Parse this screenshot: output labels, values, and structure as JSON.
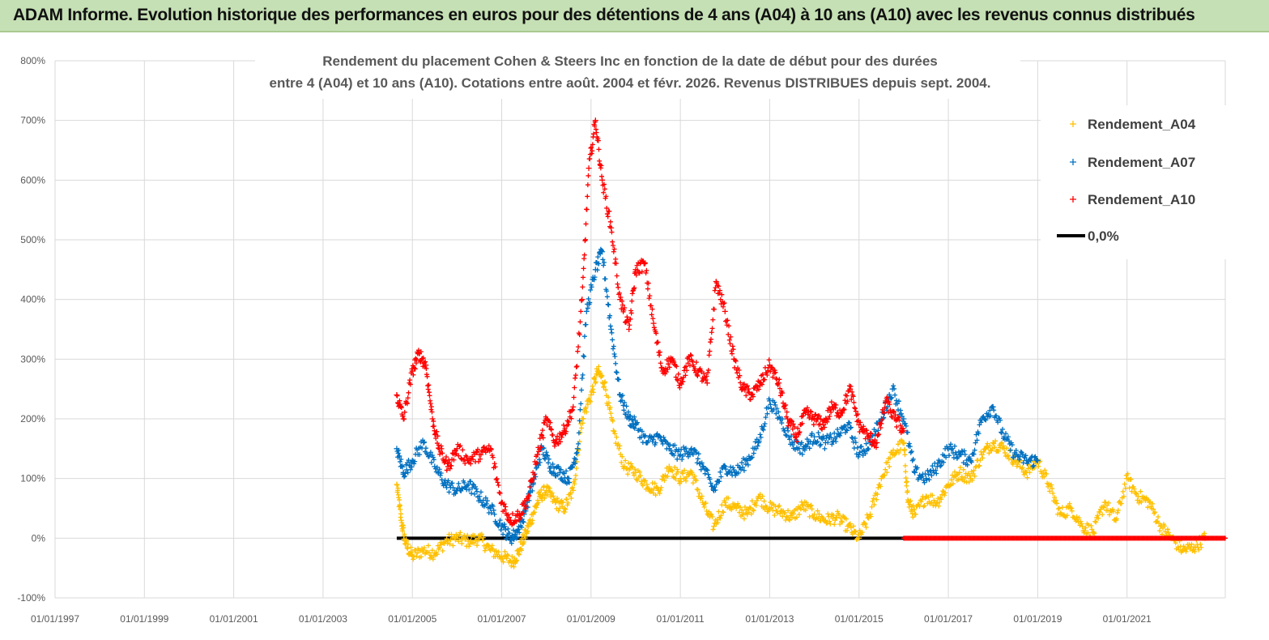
{
  "header": {
    "title": "ADAM Informe. Evolution historique des performances en euros pour des détentions de 4 ans (A04) à 10 ans (A10) avec les revenus connus distribués"
  },
  "chart_data": {
    "type": "scatter",
    "title_lines": [
      "Rendement du placement Cohen & Steers Inc en fonction de la date de début pour des durées",
      "entre 4 (A04) et 10 ans (A10).  Cotations entre août. 2004 et févr. 2026. Revenus DISTRIBUES depuis sept. 2004."
    ],
    "y_ticks": [
      "-100%",
      "0%",
      "100%",
      "200%",
      "300%",
      "400%",
      "500%",
      "600%",
      "700%",
      "800%"
    ],
    "x_ticks": [
      "01/01/1997",
      "01/01/1999",
      "01/01/2001",
      "01/01/2003",
      "01/01/2005",
      "01/01/2007",
      "01/01/2009",
      "01/01/2011",
      "01/01/2013",
      "01/01/2015",
      "01/01/2017",
      "01/01/2019",
      "01/01/2021"
    ],
    "xlim": [
      1997.0,
      2023.2
    ],
    "ylim": [
      -100,
      800
    ],
    "grid": true,
    "legend_position": "top-right",
    "series": [
      {
        "name": "Rendement_A04",
        "color": "#ffc000",
        "marker": "+",
        "points": [
          [
            2004.65,
            90
          ],
          [
            2004.75,
            30
          ],
          [
            2004.85,
            -10
          ],
          [
            2005.0,
            -30
          ],
          [
            2005.25,
            -20
          ],
          [
            2005.5,
            -25
          ],
          [
            2005.75,
            -5
          ],
          [
            2006.0,
            0
          ],
          [
            2006.25,
            -5
          ],
          [
            2006.5,
            0
          ],
          [
            2006.75,
            -20
          ],
          [
            2007.0,
            -30
          ],
          [
            2007.25,
            -40
          ],
          [
            2007.4,
            -20
          ],
          [
            2007.55,
            10
          ],
          [
            2007.7,
            40
          ],
          [
            2007.85,
            70
          ],
          [
            2008.0,
            80
          ],
          [
            2008.2,
            60
          ],
          [
            2008.4,
            50
          ],
          [
            2008.6,
            80
          ],
          [
            2008.8,
            200
          ],
          [
            2009.0,
            240
          ],
          [
            2009.15,
            280
          ],
          [
            2009.3,
            260
          ],
          [
            2009.5,
            180
          ],
          [
            2009.75,
            120
          ],
          [
            2010.0,
            110
          ],
          [
            2010.25,
            90
          ],
          [
            2010.5,
            80
          ],
          [
            2010.75,
            120
          ],
          [
            2011.0,
            100
          ],
          [
            2011.25,
            110
          ],
          [
            2011.5,
            60
          ],
          [
            2011.75,
            20
          ],
          [
            2012.0,
            60
          ],
          [
            2012.25,
            50
          ],
          [
            2012.5,
            40
          ],
          [
            2012.75,
            70
          ],
          [
            2013.0,
            50
          ],
          [
            2013.25,
            45
          ],
          [
            2013.5,
            35
          ],
          [
            2013.75,
            55
          ],
          [
            2014.0,
            40
          ],
          [
            2014.25,
            30
          ],
          [
            2014.5,
            35
          ],
          [
            2014.75,
            20
          ],
          [
            2015.0,
            0
          ],
          [
            2015.25,
            40
          ],
          [
            2015.5,
            100
          ],
          [
            2015.75,
            140
          ],
          [
            2016.0,
            160
          ],
          [
            2016.1,
            60
          ],
          [
            2016.25,
            40
          ],
          [
            2016.5,
            70
          ],
          [
            2016.75,
            60
          ],
          [
            2017.0,
            90
          ],
          [
            2017.25,
            110
          ],
          [
            2017.5,
            100
          ],
          [
            2017.75,
            140
          ],
          [
            2018.0,
            160
          ],
          [
            2018.25,
            150
          ],
          [
            2018.5,
            130
          ],
          [
            2018.75,
            110
          ],
          [
            2019.0,
            130
          ],
          [
            2019.25,
            90
          ],
          [
            2019.5,
            40
          ],
          [
            2019.75,
            50
          ],
          [
            2020.0,
            20
          ],
          [
            2020.25,
            10
          ],
          [
            2020.5,
            60
          ],
          [
            2020.75,
            30
          ],
          [
            2021.0,
            100
          ],
          [
            2021.25,
            70
          ],
          [
            2021.5,
            60
          ],
          [
            2021.75,
            20
          ],
          [
            2022.0,
            0
          ],
          [
            2022.25,
            -20
          ],
          [
            2022.5,
            -15
          ],
          [
            2022.75,
            0
          ]
        ]
      },
      {
        "name": "Rendement_A07",
        "color": "#0070c0",
        "marker": "+",
        "points": [
          [
            2004.65,
            150
          ],
          [
            2004.8,
            110
          ],
          [
            2005.0,
            130
          ],
          [
            2005.25,
            160
          ],
          [
            2005.5,
            120
          ],
          [
            2005.75,
            90
          ],
          [
            2006.0,
            80
          ],
          [
            2006.25,
            90
          ],
          [
            2006.5,
            70
          ],
          [
            2006.75,
            50
          ],
          [
            2007.0,
            20
          ],
          [
            2007.2,
            0
          ],
          [
            2007.35,
            10
          ],
          [
            2007.5,
            40
          ],
          [
            2007.7,
            90
          ],
          [
            2007.9,
            150
          ],
          [
            2008.1,
            120
          ],
          [
            2008.3,
            110
          ],
          [
            2008.5,
            100
          ],
          [
            2008.7,
            150
          ],
          [
            2008.9,
            380
          ],
          [
            2009.1,
            450
          ],
          [
            2009.25,
            480
          ],
          [
            2009.45,
            350
          ],
          [
            2009.65,
            240
          ],
          [
            2009.85,
            200
          ],
          [
            2010.0,
            190
          ],
          [
            2010.25,
            160
          ],
          [
            2010.5,
            170
          ],
          [
            2010.75,
            150
          ],
          [
            2011.0,
            140
          ],
          [
            2011.25,
            150
          ],
          [
            2011.5,
            120
          ],
          [
            2011.75,
            80
          ],
          [
            2012.0,
            120
          ],
          [
            2012.25,
            110
          ],
          [
            2012.5,
            130
          ],
          [
            2012.75,
            160
          ],
          [
            2013.0,
            230
          ],
          [
            2013.25,
            200
          ],
          [
            2013.5,
            160
          ],
          [
            2013.75,
            150
          ],
          [
            2014.0,
            170
          ],
          [
            2014.25,
            160
          ],
          [
            2014.5,
            170
          ],
          [
            2014.75,
            190
          ],
          [
            2015.0,
            140
          ],
          [
            2015.25,
            160
          ],
          [
            2015.5,
            200
          ],
          [
            2015.75,
            250
          ],
          [
            2016.0,
            200
          ],
          [
            2016.25,
            110
          ],
          [
            2016.5,
            100
          ],
          [
            2016.75,
            120
          ],
          [
            2017.0,
            150
          ],
          [
            2017.25,
            140
          ],
          [
            2017.5,
            130
          ],
          [
            2017.75,
            200
          ],
          [
            2018.0,
            220
          ],
          [
            2018.25,
            170
          ],
          [
            2018.5,
            140
          ],
          [
            2018.75,
            130
          ],
          [
            2019.0,
            130
          ]
        ]
      },
      {
        "name": "Rendement_A10",
        "color": "#ff0000",
        "marker": "+",
        "points": [
          [
            2004.65,
            240
          ],
          [
            2004.8,
            200
          ],
          [
            2005.0,
            280
          ],
          [
            2005.15,
            310
          ],
          [
            2005.3,
            290
          ],
          [
            2005.45,
            200
          ],
          [
            2005.6,
            150
          ],
          [
            2005.8,
            120
          ],
          [
            2006.0,
            150
          ],
          [
            2006.25,
            130
          ],
          [
            2006.5,
            140
          ],
          [
            2006.75,
            150
          ],
          [
            2007.0,
            60
          ],
          [
            2007.2,
            30
          ],
          [
            2007.4,
            40
          ],
          [
            2007.6,
            70
          ],
          [
            2007.8,
            140
          ],
          [
            2008.0,
            200
          ],
          [
            2008.2,
            160
          ],
          [
            2008.4,
            180
          ],
          [
            2008.6,
            220
          ],
          [
            2008.8,
            400
          ],
          [
            2008.95,
            620
          ],
          [
            2009.1,
            700
          ],
          [
            2009.25,
            600
          ],
          [
            2009.45,
            520
          ],
          [
            2009.65,
            400
          ],
          [
            2009.85,
            350
          ],
          [
            2010.0,
            450
          ],
          [
            2010.2,
            460
          ],
          [
            2010.4,
            360
          ],
          [
            2010.6,
            280
          ],
          [
            2010.8,
            300
          ],
          [
            2011.0,
            260
          ],
          [
            2011.2,
            300
          ],
          [
            2011.4,
            280
          ],
          [
            2011.6,
            260
          ],
          [
            2011.8,
            430
          ],
          [
            2012.0,
            380
          ],
          [
            2012.2,
            300
          ],
          [
            2012.4,
            250
          ],
          [
            2012.6,
            240
          ],
          [
            2012.8,
            260
          ],
          [
            2013.0,
            290
          ],
          [
            2013.2,
            260
          ],
          [
            2013.4,
            200
          ],
          [
            2013.6,
            170
          ],
          [
            2013.8,
            210
          ],
          [
            2014.0,
            200
          ],
          [
            2014.2,
            190
          ],
          [
            2014.4,
            220
          ],
          [
            2014.6,
            210
          ],
          [
            2014.8,
            250
          ],
          [
            2015.0,
            190
          ],
          [
            2015.2,
            170
          ],
          [
            2015.4,
            160
          ],
          [
            2015.6,
            230
          ],
          [
            2015.8,
            200
          ],
          [
            2016.0,
            180
          ]
        ]
      },
      {
        "name": "0,0%",
        "color": "#000000",
        "marker": "line",
        "points": [
          [
            2004.65,
            0
          ],
          [
            2016.0,
            0
          ]
        ]
      }
    ],
    "zero_markers": {
      "series": "Rendement_A10",
      "color": "#ff0000",
      "x_range": [
        2016.0,
        2023.2
      ],
      "y": 0
    }
  }
}
